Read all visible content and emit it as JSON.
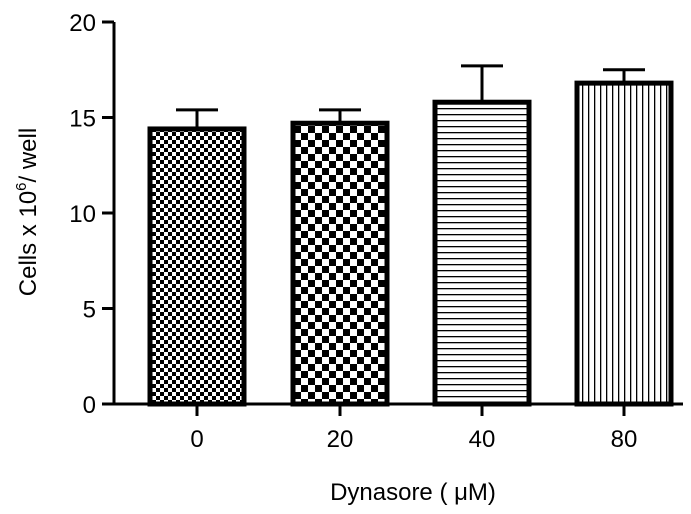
{
  "chart_data": {
    "type": "bar",
    "categories": [
      "0",
      "20",
      "40",
      "80"
    ],
    "values": [
      14.4,
      14.7,
      15.8,
      16.8
    ],
    "error_upper": [
      15.4,
      15.4,
      17.7,
      17.5
    ],
    "xlabel": "Dynasore ( μM)",
    "ylabel": {
      "prefix": "Cells x 10",
      "superscript": "6",
      "suffix": "/ well"
    },
    "ylim": [
      0,
      20
    ],
    "yticks": [
      "0",
      "5",
      "10",
      "15",
      "20"
    ],
    "grid": false,
    "legend": "none",
    "bar_patterns": [
      "fine-checker",
      "coarse-checker",
      "horizontal-lines",
      "vertical-lines"
    ],
    "colors": {
      "stroke": "#000000",
      "fill": "#ffffff"
    }
  }
}
